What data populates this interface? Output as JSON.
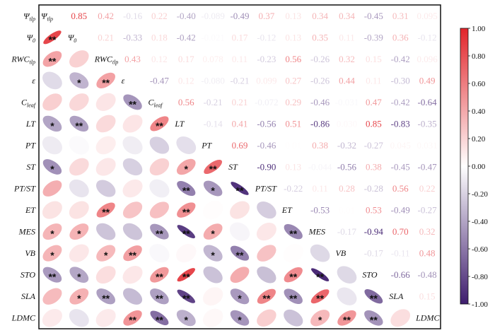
{
  "chart_data": {
    "type": "heatmap",
    "title": "",
    "legend": "right",
    "color_scale": {
      "min": -1.0,
      "max": 1.0,
      "neg_color": "#3f1d6e",
      "mid_color": "#ffffff",
      "pos_color": "#e2252b"
    },
    "colorbar_ticks": [
      "1.00",
      "0.80",
      "0.60",
      "0.40",
      "0.20",
      "0.00",
      "-0.20",
      "-0.40",
      "-0.60",
      "-0.80",
      "-1.00"
    ],
    "variables": [
      {
        "main": "Ψ",
        "sub": "tlp"
      },
      {
        "main": "Ψ",
        "sub": "0"
      },
      {
        "main": "RWC",
        "sub": "tlp"
      },
      {
        "main": "ε",
        "sub": ""
      },
      {
        "main": "C",
        "sub": "leaf"
      },
      {
        "main": "LT",
        "sub": ""
      },
      {
        "main": "PT",
        "sub": ""
      },
      {
        "main": "ST",
        "sub": ""
      },
      {
        "main": "PT/ST",
        "sub": ""
      },
      {
        "main": "ET",
        "sub": ""
      },
      {
        "main": "MES",
        "sub": ""
      },
      {
        "main": "VB",
        "sub": ""
      },
      {
        "main": "STO",
        "sub": ""
      },
      {
        "main": "SLA",
        "sub": ""
      },
      {
        "main": "LDMC",
        "sub": ""
      }
    ],
    "upper_values": [
      [
        "",
        "0.85",
        "0.42",
        "-0.16",
        "0.22",
        "-0.40",
        "-0.089",
        "-0.49",
        "0.37",
        "0.13",
        "0.34",
        "0.34",
        "-0.45",
        "0.31",
        "0.095"
      ],
      [
        "",
        "",
        "0.21",
        "-0.33",
        "0.18",
        "-0.42",
        "-0.021",
        "0.17",
        "-0.12",
        "0.13",
        "0.35",
        "0.11",
        "-0.39",
        "0.36",
        "-0.12"
      ],
      [
        "",
        "",
        "",
        "0.43",
        "0.12",
        "0.17",
        "0.078",
        "0.11",
        "-0.23",
        "0.56",
        "-0.26",
        "0.32",
        "0.15",
        "-0.42",
        "0.096"
      ],
      [
        "",
        "",
        "",
        "",
        "-0.47",
        "0.12",
        "-0.080",
        "-0.21",
        "0.099",
        "0.27",
        "-0.26",
        "0.44",
        "0.11",
        "-0.30",
        "0.49"
      ],
      [
        "",
        "",
        "",
        "",
        "",
        "0.56",
        "-0.21",
        "0.21",
        "-0.072",
        "0.29",
        "-0.46",
        "-0.031",
        "0.47",
        "-0.42",
        "-0.64"
      ],
      [
        "",
        "",
        "",
        "",
        "",
        "",
        "-0.14",
        "0.41",
        "-0.56",
        "0.51",
        "-0.86",
        "0.030",
        "0.85",
        "-0.83",
        "-0.35"
      ],
      [
        "",
        "",
        "",
        "",
        "",
        "",
        "",
        "0.69",
        "-0.46",
        "0.01",
        "0.38",
        "-0.32",
        "-0.27",
        "0.045",
        "0.031"
      ],
      [
        "",
        "",
        "",
        "",
        "",
        "",
        "",
        "",
        "-0.90",
        "0.13",
        "-0.044",
        "-0.56",
        "0.38",
        "-0.45",
        "-0.47"
      ],
      [
        "",
        "",
        "",
        "",
        "",
        "",
        "",
        "",
        "",
        "-0.22",
        "0.11",
        "0.28",
        "-0.28",
        "0.56",
        "0.22"
      ],
      [
        "",
        "",
        "",
        "",
        "",
        "",
        "",
        "",
        "",
        "",
        "-0.53",
        "0.01",
        "0.53",
        "-0.49",
        "-0.27"
      ],
      [
        "",
        "",
        "",
        "",
        "",
        "",
        "",
        "",
        "",
        "",
        "",
        "-0.17",
        "-0.94",
        "0.70",
        "0.32"
      ],
      [
        "",
        "",
        "",
        "",
        "",
        "",
        "",
        "",
        "",
        "",
        "",
        "",
        "-0.17",
        "-0.11",
        "0.48"
      ],
      [
        "",
        "",
        "",
        "",
        "",
        "",
        "",
        "",
        "",
        "",
        "",
        "",
        "",
        "-0.66",
        "-0.48"
      ],
      [
        "",
        "",
        "",
        "",
        "",
        "",
        "",
        "",
        "",
        "",
        "",
        "",
        "",
        "",
        "0.15"
      ],
      [
        "",
        "",
        "",
        "",
        "",
        "",
        "",
        "",
        "",
        "",
        "",
        "",
        "",
        "",
        ""
      ]
    ],
    "significance": [
      [
        "",
        "",
        "",
        "",
        "",
        "",
        "",
        "",
        "",
        "",
        "",
        "",
        "",
        "",
        ""
      ],
      [
        "**",
        "",
        "",
        "",
        "",
        "",
        "",
        "",
        "",
        "",
        "",
        "",
        "",
        "",
        ""
      ],
      [
        "**",
        "",
        "",
        "",
        "",
        "",
        "",
        "",
        "",
        "",
        "",
        "",
        "",
        "",
        ""
      ],
      [
        "",
        "*",
        "**",
        "",
        "",
        "",
        "",
        "",
        "",
        "",
        "",
        "",
        "",
        "",
        ""
      ],
      [
        "",
        "",
        "",
        "**",
        "",
        "",
        "",
        "",
        "",
        "",
        "",
        "",
        "",
        "",
        ""
      ],
      [
        "*",
        "**",
        "",
        "",
        "**",
        "",
        "",
        "",
        "",
        "",
        "",
        "",
        "",
        "",
        ""
      ],
      [
        "",
        "",
        "",
        "",
        "",
        "",
        "",
        "",
        "",
        "",
        "",
        "",
        "",
        "",
        ""
      ],
      [
        "*",
        "",
        "",
        "",
        "",
        "*",
        "**",
        "",
        "",
        "",
        "",
        "",
        "",
        "",
        ""
      ],
      [
        "",
        "",
        "",
        "",
        "",
        "**",
        "*",
        "**",
        "",
        "",
        "",
        "",
        "",
        "",
        ""
      ],
      [
        "",
        "",
        "**",
        "",
        "",
        "**",
        "",
        "",
        "",
        "",
        "",
        "",
        "",
        "",
        ""
      ],
      [
        "*",
        "*",
        "",
        "",
        "**",
        "**",
        "*",
        "",
        "",
        "**",
        "",
        "",
        "",
        "",
        ""
      ],
      [
        "*",
        "",
        "*",
        "**",
        "",
        "",
        "*",
        "**",
        "",
        "",
        "",
        "",
        "",
        "",
        ""
      ],
      [
        "**",
        "*",
        "",
        "",
        "**",
        "**",
        "",
        "",
        "",
        "**",
        "**",
        "",
        "",
        "",
        ""
      ],
      [
        "",
        "*",
        "**",
        "",
        "**",
        "**",
        "",
        "*",
        "**",
        "**",
        "**",
        "",
        "**",
        "",
        ""
      ],
      [
        "",
        "",
        "",
        "**",
        "**",
        "*",
        "",
        "*",
        "",
        "",
        "*",
        "**",
        "**",
        "",
        ""
      ]
    ]
  }
}
